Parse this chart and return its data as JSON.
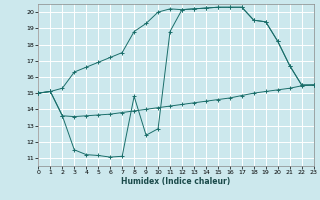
{
  "xlabel": "Humidex (Indice chaleur)",
  "xlim": [
    0,
    23
  ],
  "ylim": [
    10.5,
    20.5
  ],
  "yticks": [
    11,
    12,
    13,
    14,
    15,
    16,
    17,
    18,
    19,
    20
  ],
  "xticks": [
    0,
    1,
    2,
    3,
    4,
    5,
    6,
    7,
    8,
    9,
    10,
    11,
    12,
    13,
    14,
    15,
    16,
    17,
    18,
    19,
    20,
    21,
    22,
    23
  ],
  "bg_color": "#cce8ed",
  "grid_color": "#ffffff",
  "line_color": "#1a6e6a",
  "curve1_x": [
    0,
    1,
    2,
    3,
    4,
    5,
    6,
    7,
    8,
    9,
    10,
    11,
    12,
    13,
    14,
    15,
    16,
    17,
    18,
    19,
    20,
    21,
    22,
    23
  ],
  "curve1_y": [
    15.0,
    15.1,
    15.3,
    16.3,
    16.6,
    16.9,
    17.2,
    17.5,
    18.8,
    19.3,
    20.0,
    20.2,
    20.15,
    20.2,
    20.25,
    20.3,
    20.3,
    20.3,
    19.5,
    19.4,
    18.2,
    16.7,
    15.5,
    15.5
  ],
  "curve2_x": [
    0,
    1,
    2,
    3,
    4,
    5,
    6,
    7,
    8,
    9,
    10,
    11,
    12,
    13,
    14,
    15,
    16,
    17,
    18,
    19,
    20,
    21,
    22,
    23
  ],
  "curve2_y": [
    15.0,
    15.1,
    13.6,
    11.5,
    11.2,
    11.15,
    11.05,
    11.1,
    14.8,
    12.4,
    12.8,
    18.8,
    20.15,
    20.2,
    20.25,
    20.3,
    20.3,
    20.3,
    19.5,
    19.4,
    18.2,
    16.7,
    15.5,
    15.5
  ],
  "curve3_x": [
    0,
    1,
    2,
    3,
    4,
    5,
    6,
    7,
    8,
    9,
    10,
    11,
    12,
    13,
    14,
    15,
    16,
    17,
    18,
    19,
    20,
    21,
    22,
    23
  ],
  "curve3_y": [
    15.0,
    15.1,
    13.6,
    13.55,
    13.6,
    13.65,
    13.7,
    13.8,
    13.9,
    14.0,
    14.1,
    14.2,
    14.3,
    14.4,
    14.5,
    14.6,
    14.7,
    14.85,
    15.0,
    15.1,
    15.2,
    15.3,
    15.45,
    15.5
  ]
}
